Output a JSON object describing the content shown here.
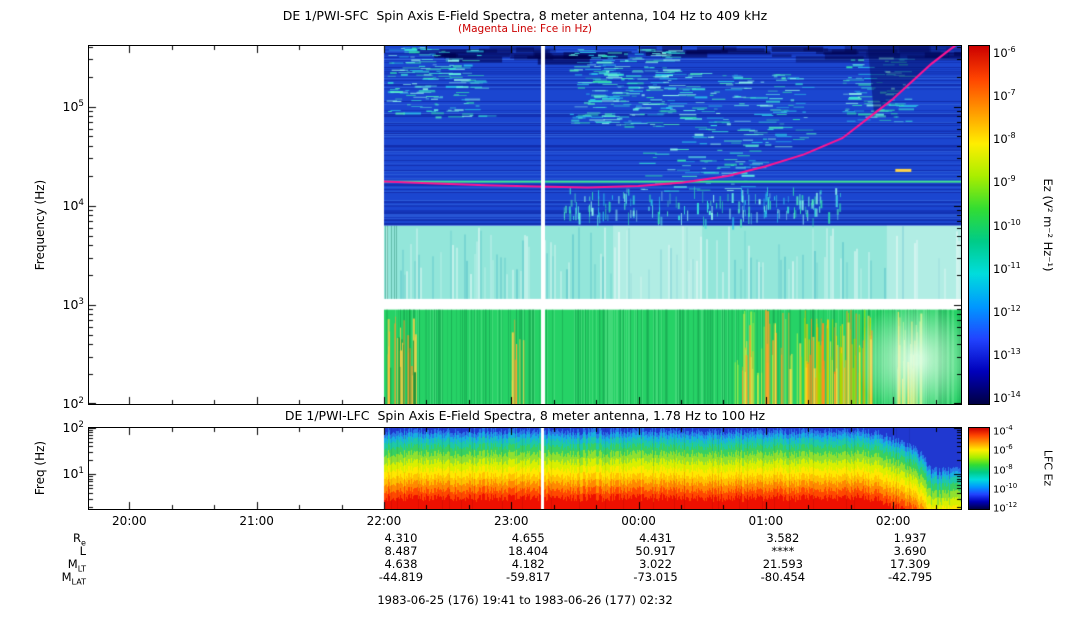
{
  "figure": {
    "background": "#ffffff",
    "footer": "1983-06-25 (176) 19:41 to 1983-06-26 (177) 02:32"
  },
  "time_axis": {
    "start_hour": 19.683,
    "end_hour": 26.533,
    "tick_hours": [
      20,
      21,
      22,
      23,
      24,
      25,
      26
    ],
    "tick_labels": [
      "20:00",
      "21:00",
      "22:00",
      "23:00",
      "00:00",
      "01:00",
      "02:00"
    ]
  },
  "ephemeris": {
    "value_hours": [
      22,
      23,
      24,
      25,
      26
    ],
    "rows": [
      {
        "label": "R",
        "sub": "e",
        "values": [
          "4.310",
          "4.655",
          "4.431",
          "3.582",
          "1.937"
        ]
      },
      {
        "label": "L",
        "sub": "",
        "values": [
          "8.487",
          "18.404",
          "50.917",
          "****",
          "3.690"
        ]
      },
      {
        "label": "M",
        "sub": "LT",
        "values": [
          "4.638",
          "4.182",
          "3.022",
          "21.593",
          "17.309"
        ]
      },
      {
        "label": "M",
        "sub": "LAT",
        "values": [
          "-44.819",
          "-59.817",
          "-73.015",
          "-80.454",
          "-42.795"
        ]
      }
    ]
  },
  "chart_data": [
    {
      "id": "sfc",
      "type": "heatmap",
      "title": "DE 1/PWI-SFC  Spin Axis E-Field Spectra, 8 meter antenna, 104 Hz to 409 kHz",
      "subtitle": "(Magenta Line: Fce in Hz)",
      "subtitle_color": "#cc0000",
      "ylabel": "Frequency (Hz)",
      "y_scale": "log",
      "y_range_hz": [
        100,
        409000
      ],
      "y_tick_exponents": [
        5,
        4,
        3,
        2
      ],
      "data_start_hour": 22.0,
      "data_gap_hour": 23.25,
      "colorbar": {
        "label": "Ez (V² m⁻² Hz⁻¹)",
        "tick_exponents": [
          -6,
          -7,
          -8,
          -9,
          -10,
          -11,
          -12,
          -13,
          -14
        ],
        "gradient_top_to_bottom": [
          "#cc0000",
          "#ff4400",
          "#ff9900",
          "#ffee00",
          "#aaee00",
          "#33dd33",
          "#00cc88",
          "#00dddd",
          "#0099ff",
          "#2244ff",
          "#0000bb",
          "#000044"
        ]
      },
      "features": {
        "bands": [
          {
            "f_lo": 100,
            "f_hi": 900,
            "color": "#26d266"
          },
          {
            "f_lo": 900,
            "f_hi": 1150,
            "color": "#ffffff"
          },
          {
            "f_lo": 1150,
            "f_hi": 6300,
            "color": "#93e6da"
          },
          {
            "f_lo": 6300,
            "f_hi": 409000,
            "color": "#1b46d0"
          }
        ],
        "fce_line": {
          "color": "#ff1493",
          "points_hour_hz": [
            [
              22.0,
              17600
            ],
            [
              22.4,
              16800
            ],
            [
              22.8,
              16100
            ],
            [
              23.2,
              15600
            ],
            [
              23.6,
              15300
            ],
            [
              24.0,
              15800
            ],
            [
              24.35,
              17200
            ],
            [
              24.7,
              20000
            ],
            [
              25.0,
              25000
            ],
            [
              25.3,
              33000
            ],
            [
              25.6,
              48000
            ],
            [
              25.85,
              85000
            ],
            [
              26.0,
              120000
            ],
            [
              26.15,
              180000
            ],
            [
              26.3,
              270000
            ],
            [
              26.45,
              380000
            ],
            [
              26.53,
              450000
            ]
          ]
        },
        "narrowband_line_hz": 17500,
        "narrowband_color": "#44e896",
        "emission_clusters": [
          {
            "t0": 22.02,
            "t1": 22.75,
            "logf0": 4.9,
            "logf1": 5.6,
            "count": 150,
            "dir": "h"
          },
          {
            "t0": 23.45,
            "t1": 24.25,
            "logf0": 4.8,
            "logf1": 5.58,
            "count": 230,
            "dir": "h"
          },
          {
            "t0": 24.3,
            "t1": 25.35,
            "logf0": 4.6,
            "logf1": 5.35,
            "count": 140,
            "dir": "h"
          },
          {
            "t0": 25.6,
            "t1": 26.1,
            "logf0": 4.85,
            "logf1": 5.5,
            "count": 90,
            "dir": "h"
          },
          {
            "t0": 24.0,
            "t1": 24.9,
            "logf0": 4.15,
            "logf1": 4.6,
            "count": 60,
            "dir": "h"
          },
          {
            "t0": 23.4,
            "t1": 25.6,
            "logf0": 3.82,
            "logf1": 4.1,
            "count": 170,
            "dir": "v"
          }
        ],
        "green_band_bursts": [
          {
            "t": 22.1,
            "spread": 0.15,
            "count": 35,
            "colors": [
              "#0a8a36",
              "#ffd24a",
              "#ff9a2a"
            ]
          },
          {
            "t": 23.05,
            "spread": 0.05,
            "count": 8,
            "colors": [
              "#ffd24a",
              "#ff9a2a"
            ]
          },
          {
            "t": 25.0,
            "spread": 0.25,
            "count": 45,
            "colors": [
              "#ffe14a",
              "#ffa12a",
              "#9ef04a"
            ]
          },
          {
            "t": 25.55,
            "spread": 0.3,
            "count": 80,
            "colors": [
              "#ffe14a",
              "#ff8c1e",
              "#ffd000",
              "#a0e000"
            ]
          },
          {
            "t": 26.12,
            "spread": 0.1,
            "count": 25,
            "colors": [
              "#ffe14a",
              "#baf07a"
            ]
          }
        ],
        "yellow_dash": {
          "hour": 26.08,
          "freq_hz": 23000,
          "color": "#ffd24a"
        },
        "bright_patch": {
          "hour": 26.18,
          "freq_hz": 280,
          "color": "#d8ffe4"
        }
      }
    },
    {
      "id": "lfc",
      "type": "heatmap",
      "title": "DE 1/PWI-LFC  Spin Axis E-Field Spectra, 8 meter antenna, 1.78 Hz to 100 Hz",
      "ylabel": "Freq (Hz)",
      "y_scale": "log",
      "y_range_hz": [
        1.78,
        100
      ],
      "y_tick_exponents": [
        2,
        1
      ],
      "data_start_hour": 22.0,
      "data_gap_hour": 23.25,
      "colorbar": {
        "label": "LFC Ez",
        "tick_exponents": [
          -4,
          -6,
          -8,
          -10,
          -12
        ],
        "gradient_top_to_bottom": [
          "#cc0000",
          "#ff4400",
          "#ff9900",
          "#ffee00",
          "#aaee00",
          "#33dd33",
          "#00cc88",
          "#00dddd",
          "#0099ff",
          "#2244ff",
          "#0000bb",
          "#000044"
        ]
      },
      "band_thresholds_hz": [
        3.2,
        4.6,
        6.6,
        9.2,
        13,
        19,
        28,
        40,
        55,
        70,
        86
      ],
      "band_colors_low_to_high": [
        "#ee1000",
        "#ff4800",
        "#ff8800",
        "#ffc000",
        "#ffe800",
        "#d8f000",
        "#90e030",
        "#38d060",
        "#1ec8a8",
        "#18b0e0",
        "#2878e8",
        "#2038d0"
      ],
      "falloff_start_hour": 25.75,
      "falloff_end_hour": 26.3,
      "falloff_min_factor": 0.14
    }
  ]
}
